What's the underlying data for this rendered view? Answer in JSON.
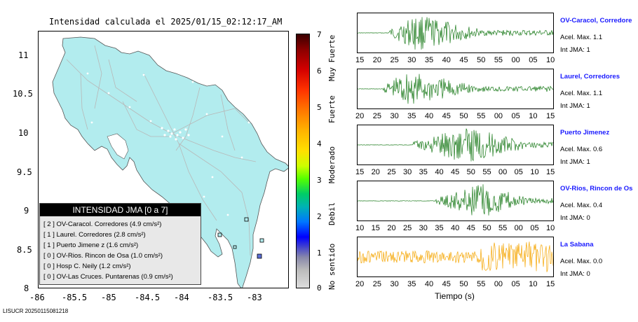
{
  "map": {
    "title": "Intensidad calculada el 2025/01/15_02:12:17_AM",
    "y_ticks": [
      "11",
      "10.5",
      "10",
      "9.5",
      "9",
      "8.5",
      "8"
    ],
    "x_ticks": [
      "-86",
      "-85.5",
      "-85",
      "-84.5",
      "-84",
      "-83.5",
      "-83"
    ],
    "colors": {
      "land": "#b2ecee",
      "ocean": "#ffffff",
      "roads": "#b8b8b8",
      "stations": "#ffffff"
    }
  },
  "legend": {
    "header": "INTENSIDAD JMA [0 a 7]",
    "entries": [
      "[ 2 ]  OV-Caracol. Corredores (4.9 cm/s²)",
      "[ 1 ]  Laurel. Corredores (2.8 cm/s²)",
      "[ 1 ]  Puerto Jimene z (1.6 cm/s²)",
      "[ 0 ]  OV-Rios. Rincon de Osa (1.0 cm/s²)",
      "[ 0 ]  Hosp C. Neily (1.2 cm/s²)",
      "[ 0 ]  OV-Las Cruces. Puntarenas (0.9 cm/s²)"
    ]
  },
  "scale": {
    "numbers": [
      "7",
      "6",
      "5",
      "4",
      "3",
      "2",
      "1",
      "0"
    ],
    "words": [
      "Muy Fuerte",
      "Fuerte",
      "Moderado",
      "Debil",
      "No sentido"
    ]
  },
  "stations": [
    {
      "name": "OV-Caracol, Corredore",
      "acel": "Acel. Max. 1.1",
      "jma": "Int JMA: 1",
      "ticks": [
        "15",
        "20",
        "25",
        "30",
        "35",
        "40",
        "45",
        "50",
        "55",
        "00",
        "05",
        "10"
      ],
      "color": "#1a7a1a"
    },
    {
      "name": "Laurel, Corredores",
      "acel": "Acel. Max. 1.1",
      "jma": "Int JMA: 1",
      "ticks": [
        "20",
        "25",
        "30",
        "35",
        "40",
        "45",
        "50",
        "55",
        "00",
        "05",
        "10",
        "15"
      ],
      "color": "#1a7a1a"
    },
    {
      "name": "Puerto Jimenez",
      "acel": "Acel. Max. 0.6",
      "jma": "Int JMA: 1",
      "ticks": [
        "15",
        "20",
        "25",
        "30",
        "35",
        "40",
        "45",
        "50",
        "55",
        "00",
        "05",
        "10",
        "15"
      ],
      "color": "#1a7a1a"
    },
    {
      "name": "OV-Rios, Rincon de Os",
      "acel": "Acel. Max. 0.4",
      "jma": "Int JMA: 0",
      "ticks": [
        "10",
        "15",
        "20",
        "25",
        "30",
        "35",
        "40",
        "45",
        "50",
        "55",
        "00",
        "05",
        "10"
      ],
      "color": "#1a7a1a"
    },
    {
      "name": "La Sabana",
      "acel": "Acel. Max. 0.0",
      "jma": "Int JMA: 0",
      "ticks": [
        "20",
        "25",
        "30",
        "35",
        "40",
        "45",
        "50",
        "55",
        "00",
        "05",
        "10",
        "15"
      ],
      "color": "#f5a500"
    }
  ],
  "traces_xlabel": "Tiempo (s)",
  "footer": "LISUCR 20250115081218"
}
